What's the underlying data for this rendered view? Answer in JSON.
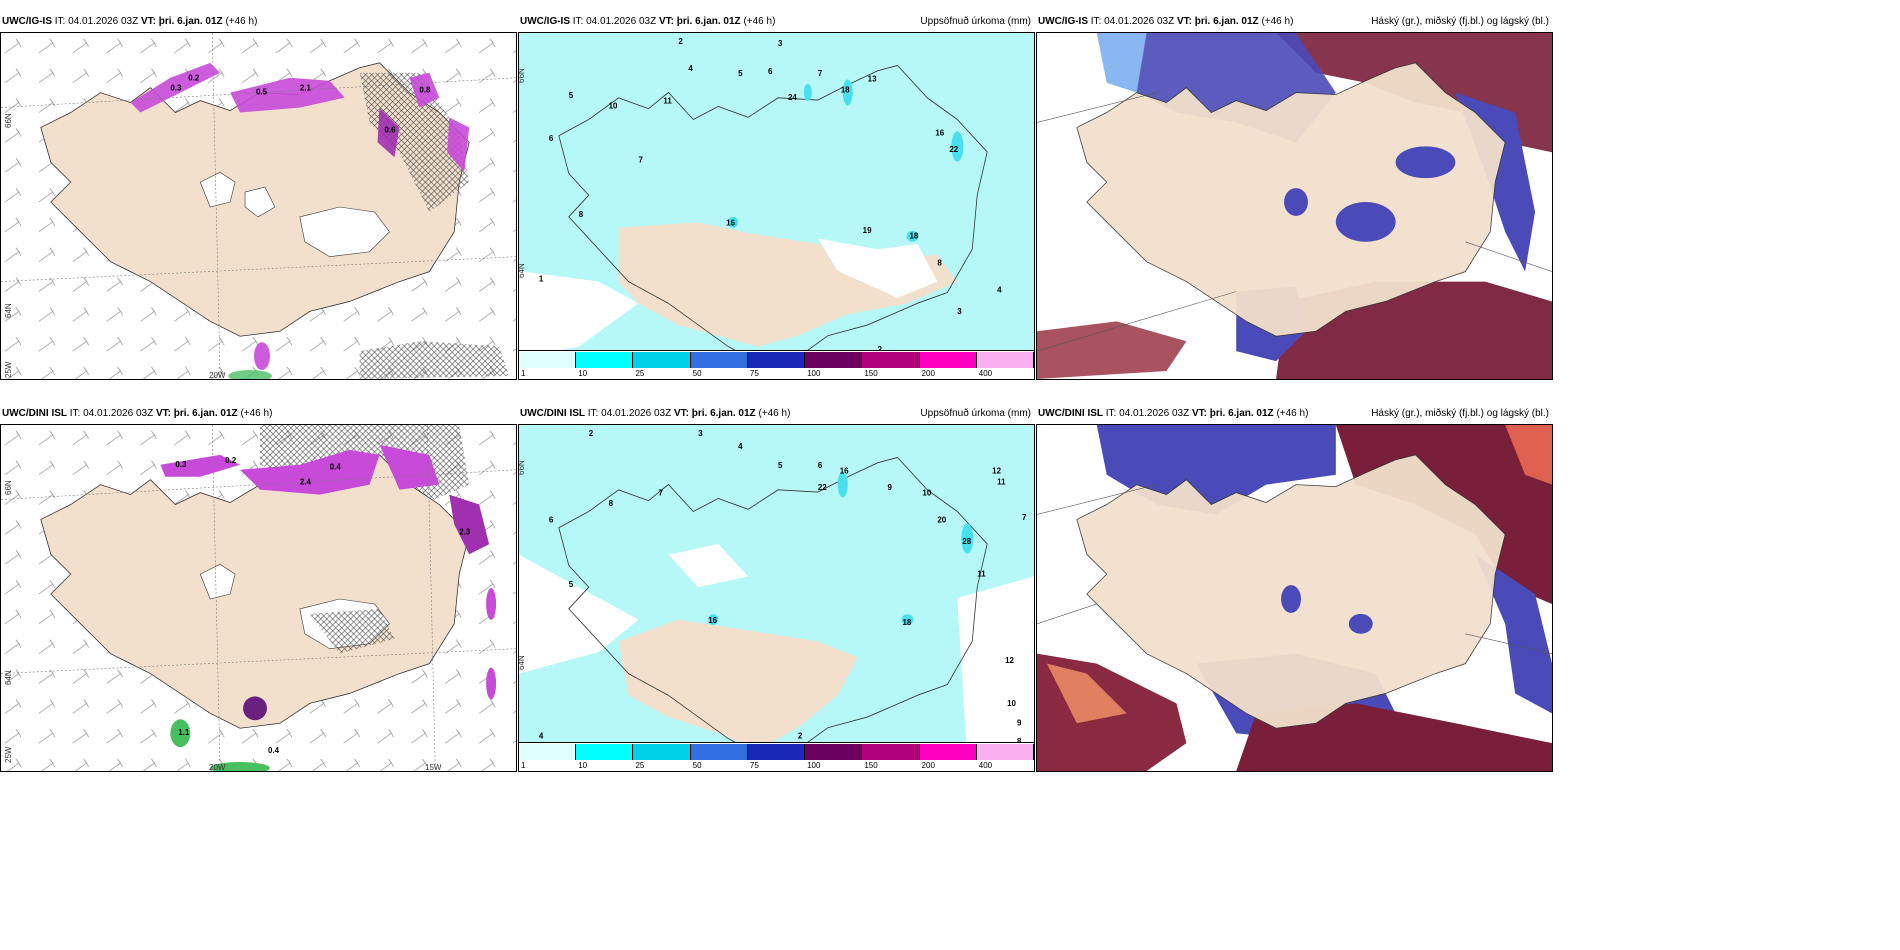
{
  "panels": {
    "p1": {
      "model": "UWC/IG-IS",
      "it_label": "IT:",
      "it": "04.01.2026 03Z",
      "vt_label": "VT:",
      "vt": "þri. 6.jan. 01Z",
      "lead": "(+46 h)",
      "right_title": ""
    },
    "p2": {
      "model": "UWC/IG-IS",
      "it_label": "IT:",
      "it": "04.01.2026 03Z",
      "vt_label": "VT:",
      "vt": "þri. 6.jan. 01Z",
      "lead": "(+46 h)",
      "right_title": "Uppsöfnuð úrkoma (mm)"
    },
    "p3": {
      "model": "UWC/IG-IS",
      "it_label": "IT:",
      "it": "04.01.2026 03Z",
      "vt_label": "VT:",
      "vt": "þri. 6.jan. 01Z",
      "lead": "(+46 h)",
      "right_title": "Háský (gr.), miðský (fj.bl.) og lágský (bl.)"
    },
    "p4": {
      "model": "UWC/DINI ISL",
      "it_label": "IT:",
      "it": "04.01.2026 03Z",
      "vt_label": "VT:",
      "vt": "þri. 6.jan. 01Z",
      "lead": "(+46 h)",
      "right_title": ""
    },
    "p5": {
      "model": "UWC/DINI ISL",
      "it_label": "IT:",
      "it": "04.01.2026 03Z",
      "vt_label": "VT:",
      "vt": "þri. 6.jan. 01Z",
      "lead": "(+46 h)",
      "right_title": "Uppsöfnuð úrkoma (mm)"
    },
    "p6": {
      "model": "UWC/DINI ISL",
      "it_label": "IT:",
      "it": "04.01.2026 03Z",
      "vt_label": "VT:",
      "vt": "þri. 6.jan. 01Z",
      "lead": "(+46 h)",
      "right_title": "Háský (gr.), miðský (fj.bl.) og lágský (bl.)"
    }
  },
  "axes": {
    "lat66": "66N",
    "lat64": "64N",
    "lon25": "25W",
    "lon20": "20W",
    "lon15": "15W",
    "lat66_right": "66N",
    "lat64_right": "64N"
  },
  "legend": {
    "ticks": [
      "1",
      "10",
      "25",
      "50",
      "75",
      "100",
      "150",
      "200",
      "400"
    ],
    "colors": [
      "#e0ffff",
      "#00ffff",
      "#00d0e8",
      "#2f6fe0",
      "#1a2ab8",
      "#6a0060",
      "#b0007a",
      "#ff00c0",
      "#f8b0f0"
    ]
  },
  "colors": {
    "land": "#f2e0cc",
    "precip_light": "#b6f7f7",
    "precip_mid": "#48e0ee",
    "snow_purple": "#c84ad8",
    "high_cloud": "#7a1f3a",
    "mid_cloud": "#4a4ab8",
    "low_cloud": "#8ab6f2"
  },
  "precip_labels_top": [
    "2",
    "3",
    "4",
    "5",
    "6",
    "7",
    "8",
    "9",
    "10",
    "11",
    "13",
    "18",
    "24",
    "22",
    "16",
    "19",
    "16",
    "18",
    "8",
    "7",
    "6",
    "5",
    "4",
    "3",
    "2",
    "1"
  ],
  "precip_labels_bottom": [
    "2",
    "3",
    "4",
    "5",
    "6",
    "7",
    "8",
    "9",
    "10",
    "11",
    "12",
    "16",
    "22",
    "20",
    "28",
    "18",
    "16",
    "12",
    "11",
    "10",
    "9",
    "8",
    "7",
    "6",
    "5",
    "4",
    "3",
    "2",
    "1"
  ],
  "snow_labels_top": [
    "0.3",
    "0.2",
    "0.5",
    "0.4",
    "0.6",
    "0.8",
    "2.1",
    "0.3"
  ],
  "snow_labels_bottom": [
    "0.3",
    "0.2",
    "0.5",
    "0.4",
    "0.6",
    "2.4",
    "2.3",
    "0.4",
    "1.1",
    "0.3"
  ]
}
